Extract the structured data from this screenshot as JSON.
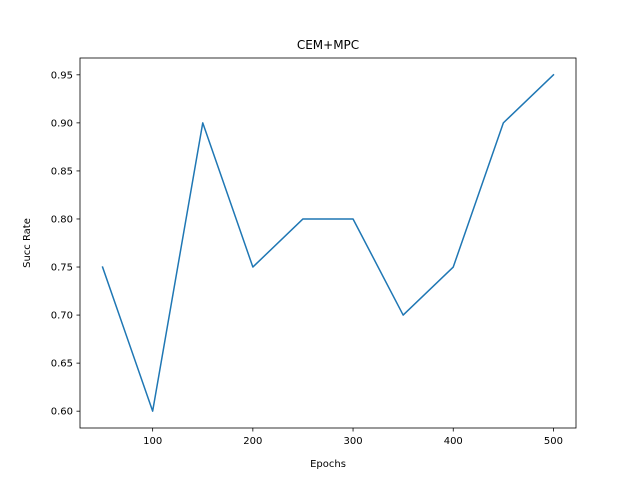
{
  "chart_data": {
    "type": "line",
    "title": "CEM+MPC",
    "xlabel": "Epochs",
    "ylabel": "Succ Rate",
    "xlim": [
      27.5,
      522.5
    ],
    "ylim": [
      0.5825,
      0.9675
    ],
    "xticks": [
      100,
      200,
      300,
      400,
      500
    ],
    "yticks": [
      0.6,
      0.65,
      0.7,
      0.75,
      0.8,
      0.85,
      0.9,
      0.95
    ],
    "xtick_labels": [
      "100",
      "200",
      "300",
      "400",
      "500"
    ],
    "ytick_labels": [
      "0.60",
      "0.65",
      "0.70",
      "0.75",
      "0.80",
      "0.85",
      "0.90",
      "0.95"
    ],
    "grid": false,
    "series": [
      {
        "color": "#1f77b4",
        "x": [
          50,
          100,
          150,
          200,
          250,
          300,
          350,
          400,
          450,
          500
        ],
        "y": [
          0.75,
          0.6,
          0.9,
          0.75,
          0.8,
          0.8,
          0.7,
          0.75,
          0.9,
          0.95
        ]
      }
    ]
  }
}
